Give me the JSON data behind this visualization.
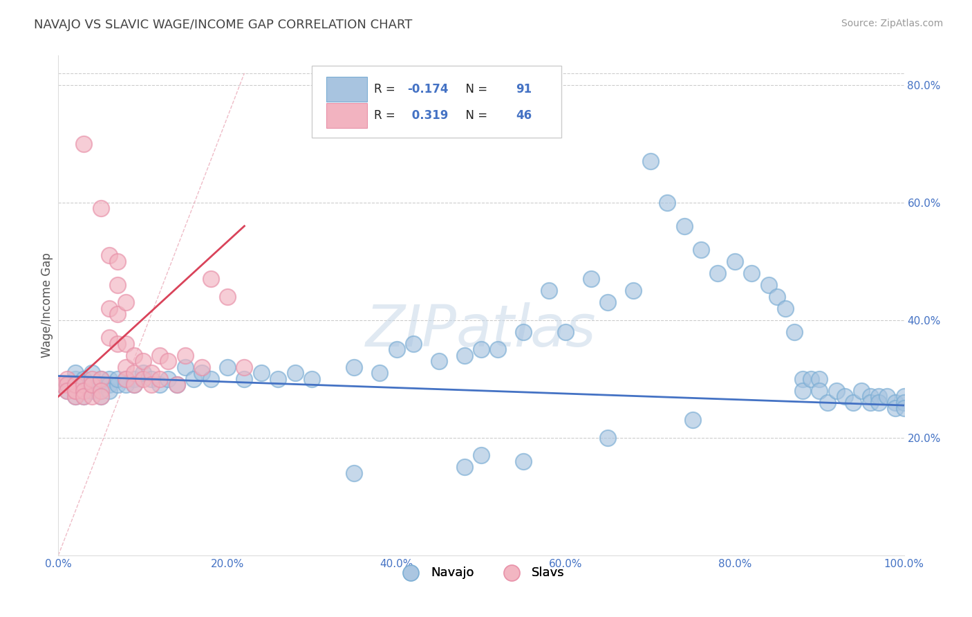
{
  "title": "NAVAJO VS SLAVIC WAGE/INCOME GAP CORRELATION CHART",
  "source": "Source: ZipAtlas.com",
  "ylabel": "Wage/Income Gap",
  "xlim": [
    0,
    1
  ],
  "ylim": [
    0,
    0.85
  ],
  "xticks": [
    0.0,
    0.2,
    0.4,
    0.6,
    0.8,
    1.0
  ],
  "xtick_labels": [
    "0.0%",
    "20.0%",
    "40.0%",
    "60.0%",
    "80.0%",
    "100.0%"
  ],
  "ytick_values": [
    0.2,
    0.4,
    0.6,
    0.8
  ],
  "navajo_color": "#a8c4e0",
  "slavs_color": "#f2b3c0",
  "navajo_edge_color": "#7aadd4",
  "slavs_edge_color": "#e890a8",
  "navajo_line_color": "#4472c4",
  "slavs_line_color": "#d9435a",
  "accent_color": "#4472c4",
  "background_color": "#ffffff",
  "grid_color": "#cccccc",
  "navajo_R": -0.174,
  "navajo_N": 91,
  "slavs_R": 0.319,
  "slavs_N": 46,
  "navajo_x": [
    0.01,
    0.01,
    0.02,
    0.02,
    0.02,
    0.03,
    0.03,
    0.03,
    0.03,
    0.04,
    0.04,
    0.04,
    0.05,
    0.05,
    0.05,
    0.05,
    0.06,
    0.06,
    0.06,
    0.07,
    0.07,
    0.08,
    0.08,
    0.09,
    0.09,
    0.1,
    0.11,
    0.12,
    0.13,
    0.14,
    0.15,
    0.16,
    0.17,
    0.18,
    0.2,
    0.22,
    0.24,
    0.26,
    0.28,
    0.3,
    0.35,
    0.38,
    0.4,
    0.42,
    0.45,
    0.48,
    0.5,
    0.52,
    0.55,
    0.58,
    0.6,
    0.63,
    0.65,
    0.68,
    0.7,
    0.72,
    0.74,
    0.76,
    0.78,
    0.8,
    0.82,
    0.84,
    0.85,
    0.86,
    0.87,
    0.88,
    0.88,
    0.89,
    0.9,
    0.9,
    0.91,
    0.92,
    0.93,
    0.94,
    0.95,
    0.96,
    0.96,
    0.97,
    0.97,
    0.98,
    0.99,
    0.99,
    1.0,
    1.0,
    1.0,
    0.5,
    0.35,
    0.65,
    0.75,
    0.55,
    0.48
  ],
  "navajo_y": [
    0.29,
    0.28,
    0.3,
    0.27,
    0.31,
    0.29,
    0.28,
    0.3,
    0.27,
    0.31,
    0.29,
    0.28,
    0.3,
    0.29,
    0.28,
    0.27,
    0.3,
    0.29,
    0.28,
    0.29,
    0.3,
    0.3,
    0.29,
    0.3,
    0.29,
    0.31,
    0.3,
    0.29,
    0.3,
    0.29,
    0.32,
    0.3,
    0.31,
    0.3,
    0.32,
    0.3,
    0.31,
    0.3,
    0.31,
    0.3,
    0.32,
    0.31,
    0.35,
    0.36,
    0.33,
    0.34,
    0.35,
    0.35,
    0.38,
    0.45,
    0.38,
    0.47,
    0.43,
    0.45,
    0.67,
    0.6,
    0.56,
    0.52,
    0.48,
    0.5,
    0.48,
    0.46,
    0.44,
    0.42,
    0.38,
    0.3,
    0.28,
    0.3,
    0.3,
    0.28,
    0.26,
    0.28,
    0.27,
    0.26,
    0.28,
    0.27,
    0.26,
    0.27,
    0.26,
    0.27,
    0.26,
    0.25,
    0.27,
    0.26,
    0.25,
    0.17,
    0.14,
    0.2,
    0.23,
    0.16,
    0.15
  ],
  "slavs_x": [
    0.005,
    0.01,
    0.01,
    0.01,
    0.02,
    0.02,
    0.02,
    0.02,
    0.03,
    0.03,
    0.03,
    0.03,
    0.04,
    0.04,
    0.04,
    0.05,
    0.05,
    0.05,
    0.05,
    0.06,
    0.06,
    0.06,
    0.07,
    0.07,
    0.07,
    0.07,
    0.08,
    0.08,
    0.08,
    0.08,
    0.09,
    0.09,
    0.09,
    0.1,
    0.1,
    0.11,
    0.11,
    0.12,
    0.12,
    0.13,
    0.14,
    0.15,
    0.17,
    0.18,
    0.2,
    0.22
  ],
  "slavs_y": [
    0.29,
    0.3,
    0.29,
    0.28,
    0.28,
    0.27,
    0.29,
    0.28,
    0.7,
    0.29,
    0.28,
    0.27,
    0.27,
    0.3,
    0.29,
    0.59,
    0.3,
    0.28,
    0.27,
    0.51,
    0.42,
    0.37,
    0.5,
    0.46,
    0.41,
    0.36,
    0.43,
    0.36,
    0.32,
    0.3,
    0.34,
    0.31,
    0.29,
    0.33,
    0.3,
    0.31,
    0.29,
    0.34,
    0.3,
    0.33,
    0.29,
    0.34,
    0.32,
    0.47,
    0.44,
    0.32
  ]
}
